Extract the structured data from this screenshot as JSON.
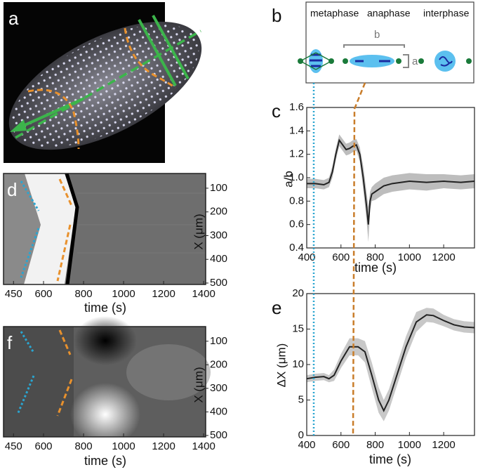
{
  "panel_labels": [
    "a",
    "b",
    "c",
    "d",
    "e",
    "f"
  ],
  "schematic": {
    "phases": [
      "metaphase",
      "anaphase",
      "interphase"
    ],
    "length_label": "b",
    "width_label": "a"
  },
  "chart_data": [
    {
      "type": "line",
      "ylabel": "a/b",
      "xlabel": "time (s)",
      "xlim": [
        400,
        1380
      ],
      "ylim": [
        0.4,
        1.6
      ],
      "xticks": [
        400,
        600,
        800,
        1000,
        1200
      ],
      "yticks": [
        0.4,
        0.6,
        0.8,
        {
          "value": 1.0,
          "label": "1.0"
        },
        1.2,
        1.4,
        1.6
      ],
      "series": [
        {
          "color": "#222222",
          "band_color": "#bdbdbd",
          "x": [
            400,
            450,
            500,
            530,
            550,
            570,
            590,
            610,
            630,
            650,
            670,
            690,
            710,
            730,
            750,
            760,
            770,
            780,
            800,
            850,
            900,
            1000,
            1100,
            1200,
            1300,
            1380
          ],
          "values": [
            0.95,
            0.95,
            0.94,
            0.96,
            1.05,
            1.2,
            1.32,
            1.28,
            1.24,
            1.25,
            1.27,
            1.28,
            1.2,
            1.0,
            0.75,
            0.6,
            0.8,
            0.86,
            0.88,
            0.93,
            0.95,
            0.97,
            0.96,
            0.97,
            0.96,
            0.97
          ],
          "errors": [
            0.04,
            0.04,
            0.04,
            0.04,
            0.05,
            0.05,
            0.05,
            0.05,
            0.05,
            0.05,
            0.05,
            0.05,
            0.06,
            0.1,
            0.12,
            0.15,
            0.08,
            0.06,
            0.07,
            0.07,
            0.07,
            0.07,
            0.07,
            0.06,
            0.06,
            0.06
          ]
        }
      ]
    },
    {
      "type": "line",
      "ylabel": "ΔX (μm)",
      "xlabel": "time (s)",
      "xlim": [
        400,
        1380
      ],
      "ylim": [
        0,
        20
      ],
      "xticks": [
        400,
        600,
        800,
        1000,
        1200
      ],
      "yticks": [
        0,
        5,
        10,
        15,
        20
      ],
      "series": [
        {
          "color": "#222222",
          "band_color": "#c8c8c8",
          "x": [
            400,
            450,
            500,
            530,
            560,
            600,
            650,
            700,
            740,
            780,
            820,
            850,
            880,
            920,
            980,
            1040,
            1100,
            1140,
            1200,
            1260,
            1320,
            1380
          ],
          "values": [
            8,
            8.2,
            8.3,
            8,
            8.5,
            10.5,
            12.5,
            12.5,
            11.8,
            8.5,
            5,
            3.5,
            5,
            8,
            12.5,
            16,
            17,
            16.9,
            16.2,
            15.6,
            15.3,
            15.2
          ],
          "errors": [
            0.5,
            0.5,
            0.5,
            0.5,
            0.8,
            1,
            1.2,
            1.2,
            1.5,
            1.8,
            1.8,
            1.5,
            1.5,
            1.5,
            1.5,
            1.4,
            1,
            1,
            0.8,
            0.8,
            0.8,
            0.8
          ]
        }
      ]
    },
    {
      "type": "image",
      "ylabel": "X (μm)",
      "xlabel": "time (s)",
      "xlim": [
        400,
        1410
      ],
      "ylim": [
        38,
        506
      ],
      "y_inverted": true,
      "xticks": [
        450,
        600,
        800,
        1000,
        1200,
        1400
      ],
      "yticks": [
        100,
        200,
        300,
        400,
        500
      ]
    },
    {
      "type": "image",
      "ylabel": "X (μm)",
      "xlabel": "time (s)",
      "xlim": [
        400,
        1410
      ],
      "ylim": [
        38,
        506
      ],
      "y_inverted": true,
      "xticks": [
        450,
        600,
        800,
        1000,
        1200,
        1400
      ],
      "yticks": [
        100,
        200,
        300,
        400,
        500
      ]
    }
  ]
}
